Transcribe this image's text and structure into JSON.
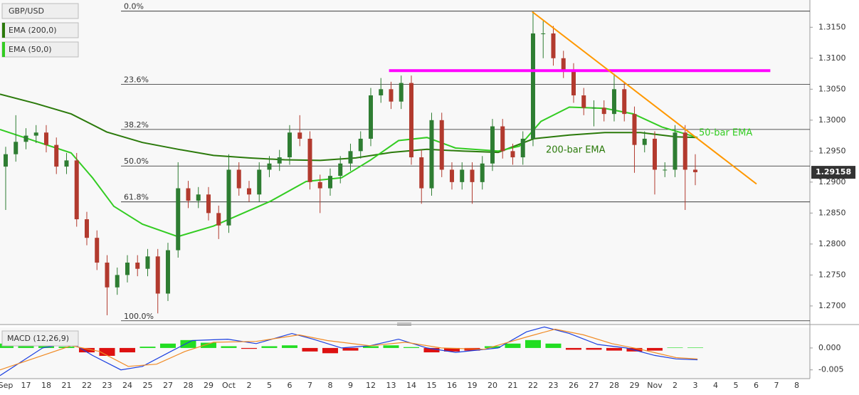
{
  "chart_data": {
    "type": "candlestick",
    "title": "GBP/USD",
    "categories": [
      "Sep",
      "17",
      "18",
      "21",
      "22",
      "23",
      "24",
      "25",
      "27",
      "28",
      "29",
      "Oct",
      "2",
      "5",
      "6",
      "7",
      "8",
      "9",
      "12",
      "13",
      "14",
      "15",
      "16",
      "19",
      "20",
      "21",
      "22",
      "23",
      "26",
      "27",
      "28",
      "29",
      "Nov",
      "2",
      "3",
      "4",
      "5",
      "6",
      "7",
      "8"
    ],
    "xlim": [
      -0.28,
      39.65
    ],
    "ylim": [
      1.267,
      1.3194
    ],
    "yticks": [
      {
        "value": 1.27,
        "label": "1.2700"
      },
      {
        "value": 1.275,
        "label": "1.2750"
      },
      {
        "value": 1.28,
        "label": "1.2800"
      },
      {
        "value": 1.285,
        "label": "1.2850"
      },
      {
        "value": 1.29,
        "label": "1.2900"
      },
      {
        "value": 1.295,
        "label": "1.2950"
      },
      {
        "value": 1.3,
        "label": "1.3000"
      },
      {
        "value": 1.305,
        "label": "1.3050"
      },
      {
        "value": 1.31,
        "label": "1.3100"
      },
      {
        "value": 1.315,
        "label": "1.3150"
      }
    ],
    "up_color": "#2e7d32",
    "down_color": "#b23a2e",
    "candles": {
      "x": [
        0,
        0.5,
        1,
        1.5,
        2,
        2.5,
        3,
        3.5,
        4,
        4.5,
        5,
        5.5,
        6,
        6.5,
        7,
        7.5,
        8,
        8.5,
        9,
        9.5,
        10,
        10.5,
        11,
        11.5,
        12,
        12.5,
        13,
        13.5,
        14,
        14.5,
        15,
        15.5,
        16,
        16.5,
        17,
        17.5,
        18,
        18.5,
        19,
        19.5,
        20,
        20.5,
        21,
        21.5,
        22,
        22.5,
        23,
        23.5,
        24,
        24.5,
        25,
        25.5,
        26,
        26.5,
        27,
        27.5,
        28,
        28.5,
        29,
        29.5,
        30,
        30.5,
        31,
        31.5,
        32,
        32.5,
        33,
        33.5,
        34
      ],
      "open": [
        1.2925,
        1.2945,
        1.2965,
        1.2975,
        1.298,
        1.296,
        1.2925,
        1.2935,
        1.284,
        1.281,
        1.277,
        1.273,
        1.275,
        1.277,
        1.276,
        1.278,
        1.272,
        1.279,
        1.289,
        1.287,
        1.288,
        1.285,
        1.283,
        1.292,
        1.289,
        1.288,
        1.292,
        1.293,
        1.294,
        1.298,
        1.297,
        1.29,
        1.289,
        1.291,
        1.293,
        1.295,
        1.297,
        1.304,
        1.305,
        1.303,
        1.306,
        1.294,
        1.289,
        1.3,
        1.292,
        1.29,
        1.292,
        1.29,
        1.293,
        1.299,
        1.295,
        1.294,
        1.297,
        1.314,
        1.314,
        1.31,
        1.308,
        1.304,
        1.302,
        1.302,
        1.301,
        1.305,
        1.301,
        1.296,
        1.297,
        1.292,
        1.292,
        1.298,
        1.292
      ],
      "high": [
        1.2957,
        1.3008,
        1.2987,
        1.2992,
        1.2992,
        1.2972,
        1.2947,
        1.2947,
        1.2852,
        1.2822,
        1.2782,
        1.2762,
        1.2782,
        1.2782,
        1.2792,
        1.2792,
        1.2802,
        1.2932,
        1.2902,
        1.2892,
        1.2892,
        1.2862,
        1.2945,
        1.2932,
        1.2902,
        1.2932,
        1.2942,
        1.2952,
        1.2992,
        1.3008,
        1.2982,
        1.2912,
        1.2922,
        1.2942,
        1.2962,
        1.2982,
        1.3052,
        1.3068,
        1.3062,
        1.3072,
        1.3072,
        1.2952,
        1.3012,
        1.3012,
        1.2932,
        1.2932,
        1.2932,
        1.2942,
        1.3002,
        1.3002,
        1.2962,
        1.2982,
        1.3176,
        1.316,
        1.3152,
        1.3112,
        1.3092,
        1.3052,
        1.3032,
        1.3032,
        1.3075,
        1.3062,
        1.3022,
        1.2982,
        1.2982,
        1.2932,
        1.2992,
        1.2992,
        1.2945
      ],
      "low": [
        1.2855,
        1.2933,
        1.2953,
        1.2963,
        1.2948,
        1.2913,
        1.2913,
        1.2828,
        1.2798,
        1.2758,
        1.2685,
        1.2718,
        1.2738,
        1.2748,
        1.2748,
        1.2688,
        1.2708,
        1.2778,
        1.2858,
        1.2858,
        1.2838,
        1.2808,
        1.2818,
        1.2878,
        1.2868,
        1.2868,
        1.2908,
        1.2918,
        1.2928,
        1.2958,
        1.2888,
        1.285,
        1.2878,
        1.2898,
        1.2918,
        1.2938,
        1.2958,
        1.3028,
        1.3018,
        1.3018,
        1.2928,
        1.2865,
        1.2878,
        1.2908,
        1.2888,
        1.2888,
        1.2865,
        1.2888,
        1.2918,
        1.2938,
        1.2928,
        1.2928,
        1.2958,
        1.31,
        1.3088,
        1.3068,
        1.3028,
        1.3008,
        1.299,
        1.2998,
        1.2998,
        1.2998,
        1.2915,
        1.2948,
        1.288,
        1.2908,
        1.2908,
        1.2855,
        1.2895
      ],
      "close": [
        1.2945,
        1.2965,
        1.2975,
        1.298,
        1.296,
        1.2925,
        1.2935,
        1.284,
        1.281,
        1.277,
        1.273,
        1.275,
        1.277,
        1.276,
        1.278,
        1.272,
        1.279,
        1.289,
        1.287,
        1.288,
        1.285,
        1.283,
        1.292,
        1.289,
        1.288,
        1.292,
        1.293,
        1.294,
        1.298,
        1.297,
        1.29,
        1.289,
        1.291,
        1.293,
        1.295,
        1.297,
        1.304,
        1.305,
        1.303,
        1.306,
        1.294,
        1.289,
        1.3,
        1.292,
        1.29,
        1.292,
        1.29,
        1.293,
        1.299,
        1.295,
        1.294,
        1.297,
        1.314,
        1.314,
        1.31,
        1.308,
        1.304,
        1.302,
        1.302,
        1.301,
        1.305,
        1.301,
        1.296,
        1.297,
        1.292,
        1.292,
        1.298,
        1.292,
        1.2916
      ]
    },
    "series": [
      {
        "name": "EMA (200,0)",
        "color": "#2b7a0b",
        "x": [
          -0.28,
          1.47,
          3.23,
          4.98,
          6.74,
          8.49,
          10.25,
          12.0,
          13.75,
          15.51,
          17.26,
          19.02,
          20.77,
          22.53,
          24.28,
          26.04,
          27.79,
          29.54,
          31.3,
          33.05,
          34.11
        ],
        "values": [
          1.3042,
          1.3027,
          1.301,
          1.2981,
          1.2964,
          1.2953,
          1.2943,
          1.2939,
          1.2936,
          1.2935,
          1.2939,
          1.2948,
          1.2953,
          1.295,
          1.2948,
          1.297,
          1.2976,
          1.298,
          1.298,
          1.2973,
          1.2972
        ]
      },
      {
        "name": "EMA (50,0)",
        "color": "#33cc22",
        "x": [
          -0.28,
          1.47,
          3.23,
          4.28,
          5.33,
          6.74,
          8.49,
          10.25,
          11.65,
          13.05,
          14.81,
          16.56,
          17.96,
          19.37,
          20.77,
          22.18,
          24.28,
          25.33,
          26.39,
          27.79,
          29.54,
          30.95,
          32.35,
          34.11
        ],
        "values": [
          1.2985,
          1.2966,
          1.2947,
          1.2907,
          1.2861,
          1.2832,
          1.2812,
          1.2829,
          1.2849,
          1.2869,
          1.2901,
          1.2907,
          1.2935,
          1.2967,
          1.2972,
          1.2955,
          1.295,
          1.2958,
          1.2998,
          1.3021,
          1.3019,
          1.301,
          1.2989,
          1.2972
        ]
      }
    ],
    "last_price": 1.29158,
    "fib_levels": [
      {
        "label": "0.0%",
        "value": 1.3176
      },
      {
        "label": "23.6%",
        "value": 1.3058
      },
      {
        "label": "38.2%",
        "value": 1.2985
      },
      {
        "label": "50.0%",
        "value": 1.2926
      },
      {
        "label": "61.8%",
        "value": 1.2868
      },
      {
        "label": "100.0%",
        "value": 1.2676
      }
    ],
    "lines": [
      {
        "color": "#ff00ff",
        "x": [
          18.9,
          37.7
        ],
        "values": [
          1.308,
          1.308
        ]
      },
      {
        "color": "#ff9800",
        "x": [
          25.96,
          37.02
        ],
        "values": [
          1.3175,
          1.2897
        ]
      }
    ],
    "annotations": [
      "50-bar EMA",
      "200-bar EMA"
    ],
    "macd": {
      "title": "MACD (12,26,9)",
      "ylim": [
        -0.007,
        0.0047
      ],
      "yticks": [
        {
          "value": 0,
          "label": "0.000"
        },
        {
          "value": -0.005,
          "label": "-0.005"
        }
      ],
      "histogram": {
        "x": [
          0,
          1,
          2,
          3,
          4,
          5,
          6,
          7,
          8,
          9,
          10,
          11,
          12,
          13,
          14,
          15,
          16,
          17,
          18,
          19,
          20,
          21,
          22,
          23,
          24,
          25,
          26,
          27,
          28,
          29,
          30,
          31,
          32,
          33,
          34
        ],
        "values": [
          0.001,
          0.0008,
          0.0005,
          0.0003,
          -0.001,
          -0.0018,
          -0.001,
          0.0003,
          0.001,
          0.0018,
          0.0012,
          0.0004,
          -0.0002,
          0.0004,
          0.0006,
          -0.0008,
          -0.0012,
          -0.0006,
          0.0004,
          0.0006,
          0.0002,
          -0.001,
          -0.0008,
          -0.0006,
          0.0004,
          0.001,
          0.0018,
          0.001,
          -0.0004,
          -0.0004,
          -0.0006,
          -0.0008,
          -0.0006,
          0.0001,
          0.0001
        ],
        "up_color": "#22dd22",
        "down_color": "#dd1111"
      },
      "macd_line": {
        "color": "#1a3ee0",
        "x": [
          -0.28,
          1.82,
          3.23,
          4.28,
          5.68,
          6.74,
          8.14,
          9.19,
          10.95,
          12.35,
          14.11,
          15.16,
          16.56,
          17.96,
          19.37,
          20.77,
          22.18,
          24.28,
          25.68,
          26.56,
          27.79,
          29.19,
          30.6,
          32.0,
          33.05,
          34.11
        ],
        "values": [
          -0.0063,
          0,
          0.0012,
          -0.0017,
          -0.005,
          -0.0042,
          -0.0008,
          0.0017,
          0.002,
          0.001,
          0.0033,
          0.002,
          0,
          0.0005,
          0.002,
          0,
          -0.001,
          0,
          0.0037,
          0.0048,
          0.0033,
          0.0008,
          0,
          -0.0017,
          -0.0025,
          -0.0027
        ]
      },
      "signal_line": {
        "color": "#f08a24",
        "x": [
          -0.28,
          1.82,
          3.23,
          4.63,
          6.04,
          7.44,
          8.84,
          10.25,
          12.35,
          14.46,
          15.86,
          17.96,
          19.72,
          21.47,
          23.58,
          25.68,
          27.09,
          28.49,
          29.89,
          31.3,
          33.05,
          34.11
        ],
        "values": [
          -0.005,
          -0.0017,
          0.0005,
          -0.0008,
          -0.0042,
          -0.0037,
          -0.0008,
          0.0013,
          0.0015,
          0.003,
          0.0017,
          0.0005,
          0.0013,
          0,
          -0.0003,
          0.0025,
          0.0043,
          0.003,
          0.001,
          -0.0003,
          -0.0022,
          -0.0025
        ]
      }
    }
  }
}
